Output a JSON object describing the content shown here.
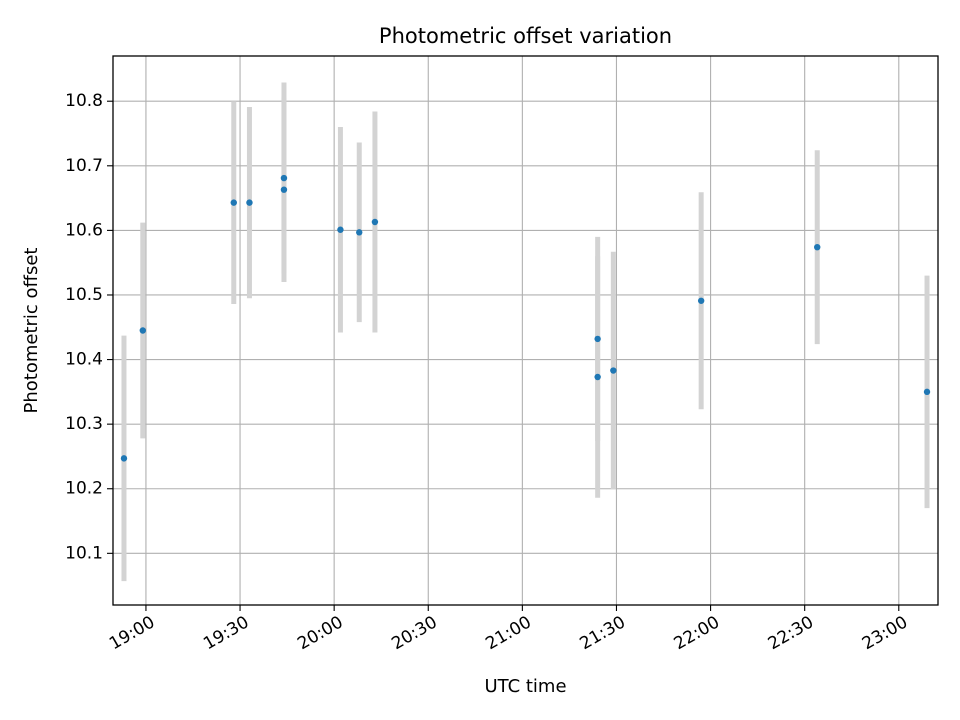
{
  "chart_data": {
    "type": "scatter",
    "title": "Photometric offset variation",
    "xlabel": "UTC time",
    "ylabel": "Photometric offset",
    "x_ticks": [
      "19:00",
      "19:30",
      "20:00",
      "20:30",
      "21:00",
      "21:30",
      "22:00",
      "22:30",
      "23:00"
    ],
    "y_ticks": [
      "10.1",
      "10.2",
      "10.3",
      "10.4",
      "10.5",
      "10.6",
      "10.7",
      "10.8"
    ],
    "xlim": [
      "18:49.5",
      "23:12.5"
    ],
    "ylim": [
      10.02,
      10.87
    ],
    "grid": true,
    "point_color": "#1f77b4",
    "errorbar_color": "#d3d3d3",
    "series": [
      {
        "points": [
          {
            "x": "18:53",
            "y": 10.247,
            "yerr": 0.19
          },
          {
            "x": "18:59",
            "y": 10.445,
            "yerr": 0.167
          },
          {
            "x": "19:28",
            "y": 10.643,
            "yerr": 0.157
          },
          {
            "x": "19:33",
            "y": 10.643,
            "yerr": 0.148
          },
          {
            "x": "19:44",
            "y": 10.663,
            "yerr": 0.143
          },
          {
            "x": "19:44",
            "y": 10.681,
            "yerr": 0.148
          },
          {
            "x": "20:02",
            "y": 10.601,
            "yerr": 0.159
          },
          {
            "x": "20:08",
            "y": 10.597,
            "yerr": 0.139
          },
          {
            "x": "20:13",
            "y": 10.613,
            "yerr": 0.171
          },
          {
            "x": "21:24",
            "y": 10.373,
            "yerr": 0.187
          },
          {
            "x": "21:24",
            "y": 10.432,
            "yerr": 0.158
          },
          {
            "x": "21:29",
            "y": 10.383,
            "yerr": 0.184
          },
          {
            "x": "21:57",
            "y": 10.491,
            "yerr": 0.168
          },
          {
            "x": "22:34",
            "y": 10.574,
            "yerr": 0.15
          },
          {
            "x": "23:09",
            "y": 10.35,
            "yerr": 0.18
          }
        ]
      }
    ]
  }
}
